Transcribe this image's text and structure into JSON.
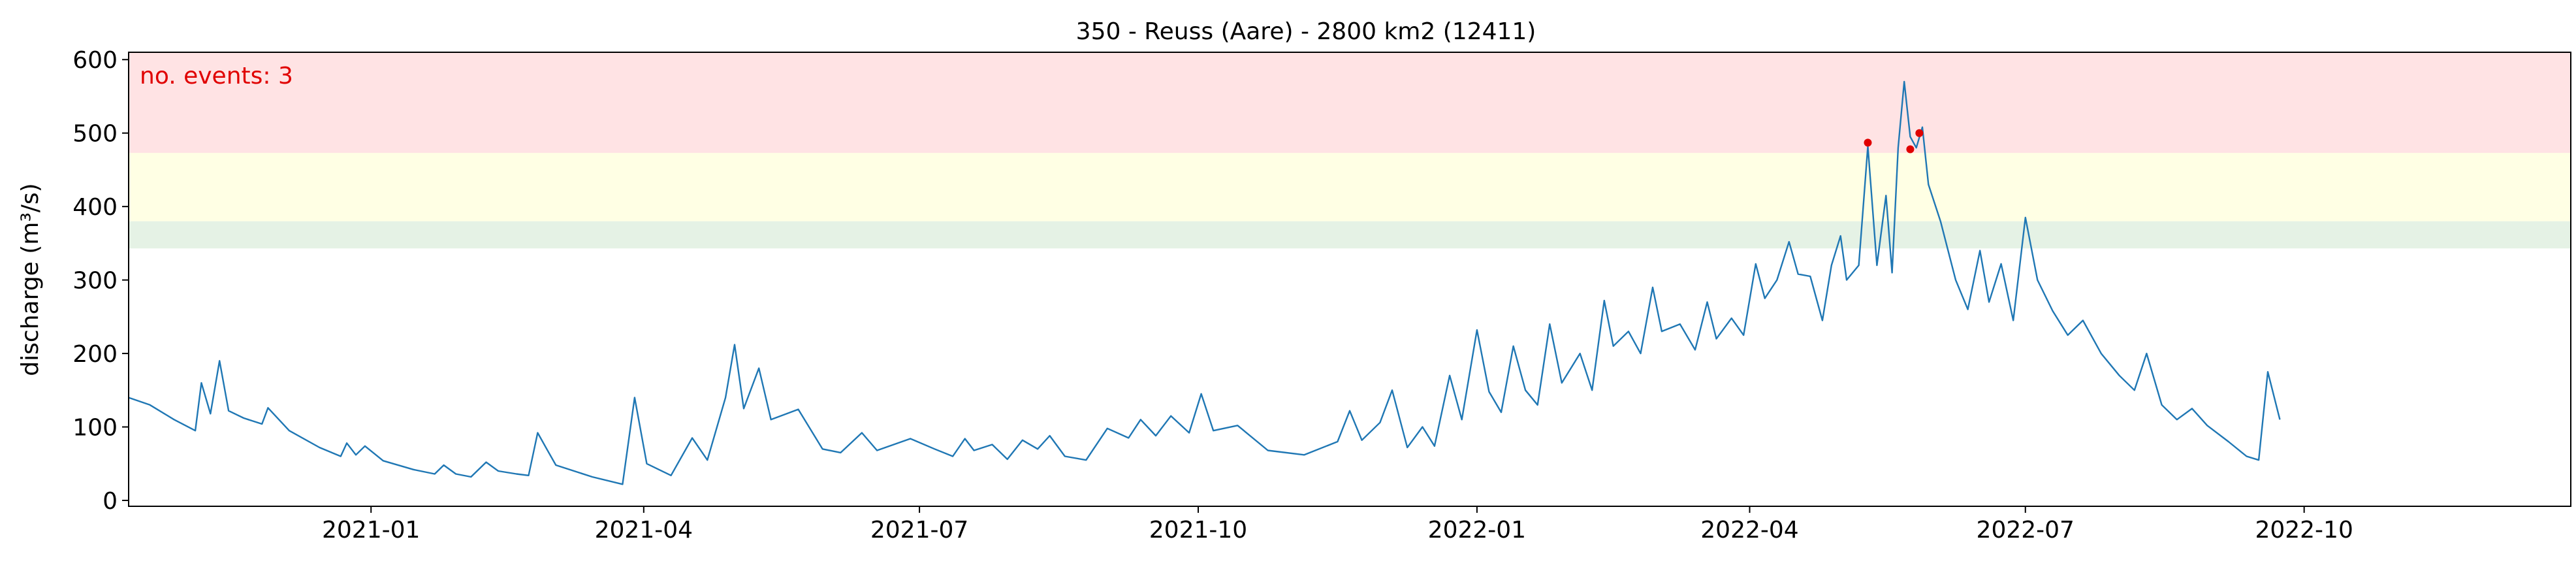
{
  "chart_data": {
    "type": "line",
    "title": "350 - Reuss (Aare) - 2800 km2 (12411)",
    "xlabel": "",
    "ylabel": "discharge (m³/s)",
    "ylim": [
      -8,
      610
    ],
    "xlim": [
      "2020-10-13",
      "2022-12-28"
    ],
    "grid": false,
    "legend": "none",
    "annotation": {
      "text": "no. events: 3",
      "color": "#e00000",
      "position": "top-left"
    },
    "x_ticks": [
      "2021-01",
      "2021-04",
      "2021-07",
      "2021-10",
      "2022-01",
      "2022-04",
      "2022-07",
      "2022-10"
    ],
    "y_ticks": [
      0,
      100,
      200,
      300,
      400,
      500,
      600
    ],
    "bands": [
      {
        "from": 343,
        "to": 380,
        "color": "#e5f2e5"
      },
      {
        "from": 380,
        "to": 473,
        "color": "#ffffe4"
      },
      {
        "from": 473,
        "to": 610,
        "color": "#ffe3e4"
      }
    ],
    "series": [
      {
        "color": "#1f77b4",
        "points": [
          [
            "2020-10-13",
            140
          ],
          [
            "2020-10-20",
            130
          ],
          [
            "2020-10-28",
            110
          ],
          [
            "2020-11-04",
            95
          ],
          [
            "2020-11-06",
            160
          ],
          [
            "2020-11-09",
            118
          ],
          [
            "2020-11-12",
            190
          ],
          [
            "2020-11-15",
            122
          ],
          [
            "2020-11-20",
            112
          ],
          [
            "2020-11-26",
            104
          ],
          [
            "2020-11-28",
            126
          ],
          [
            "2020-12-05",
            95
          ],
          [
            "2020-12-15",
            72
          ],
          [
            "2020-12-22",
            60
          ],
          [
            "2020-12-24",
            78
          ],
          [
            "2020-12-27",
            62
          ],
          [
            "2020-12-30",
            74
          ],
          [
            "2021-01-05",
            54
          ],
          [
            "2021-01-15",
            42
          ],
          [
            "2021-01-22",
            36
          ],
          [
            "2021-01-25",
            48
          ],
          [
            "2021-01-29",
            36
          ],
          [
            "2021-02-03",
            32
          ],
          [
            "2021-02-08",
            52
          ],
          [
            "2021-02-12",
            40
          ],
          [
            "2021-02-18",
            36
          ],
          [
            "2021-02-22",
            34
          ],
          [
            "2021-02-25",
            92
          ],
          [
            "2021-02-28",
            70
          ],
          [
            "2021-03-03",
            48
          ],
          [
            "2021-03-15",
            32
          ],
          [
            "2021-03-25",
            22
          ],
          [
            "2021-03-29",
            140
          ],
          [
            "2021-04-02",
            50
          ],
          [
            "2021-04-10",
            34
          ],
          [
            "2021-04-17",
            85
          ],
          [
            "2021-04-22",
            55
          ],
          [
            "2021-04-28",
            140
          ],
          [
            "2021-05-01",
            212
          ],
          [
            "2021-05-04",
            125
          ],
          [
            "2021-05-09",
            180
          ],
          [
            "2021-05-13",
            110
          ],
          [
            "2021-05-22",
            124
          ],
          [
            "2021-05-30",
            70
          ],
          [
            "2021-06-05",
            65
          ],
          [
            "2021-06-12",
            92
          ],
          [
            "2021-06-17",
            68
          ],
          [
            "2021-06-28",
            84
          ],
          [
            "2021-07-06",
            70
          ],
          [
            "2021-07-12",
            60
          ],
          [
            "2021-07-16",
            84
          ],
          [
            "2021-07-19",
            68
          ],
          [
            "2021-07-25",
            76
          ],
          [
            "2021-07-30",
            56
          ],
          [
            "2021-08-04",
            82
          ],
          [
            "2021-08-09",
            70
          ],
          [
            "2021-08-13",
            88
          ],
          [
            "2021-08-18",
            60
          ],
          [
            "2021-08-25",
            55
          ],
          [
            "2021-09-01",
            98
          ],
          [
            "2021-09-08",
            85
          ],
          [
            "2021-09-12",
            110
          ],
          [
            "2021-09-17",
            88
          ],
          [
            "2021-09-22",
            115
          ],
          [
            "2021-09-28",
            92
          ],
          [
            "2021-10-02",
            145
          ],
          [
            "2021-10-06",
            95
          ],
          [
            "2021-10-14",
            102
          ],
          [
            "2021-10-24",
            68
          ],
          [
            "2021-11-05",
            62
          ],
          [
            "2021-11-16",
            80
          ],
          [
            "2021-11-20",
            122
          ],
          [
            "2021-11-24",
            82
          ],
          [
            "2021-11-30",
            106
          ],
          [
            "2021-12-04",
            150
          ],
          [
            "2021-12-09",
            72
          ],
          [
            "2021-12-14",
            100
          ],
          [
            "2021-12-18",
            74
          ],
          [
            "2021-12-23",
            170
          ],
          [
            "2021-12-27",
            110
          ],
          [
            "2022-01-01",
            232
          ],
          [
            "2022-01-05",
            148
          ],
          [
            "2022-01-09",
            120
          ],
          [
            "2022-01-13",
            210
          ],
          [
            "2022-01-17",
            150
          ],
          [
            "2022-01-21",
            130
          ],
          [
            "2022-01-25",
            240
          ],
          [
            "2022-01-29",
            160
          ],
          [
            "2022-02-04",
            200
          ],
          [
            "2022-02-08",
            150
          ],
          [
            "2022-02-12",
            272
          ],
          [
            "2022-02-15",
            210
          ],
          [
            "2022-02-20",
            230
          ],
          [
            "2022-02-24",
            200
          ],
          [
            "2022-02-28",
            290
          ],
          [
            "2022-03-03",
            230
          ],
          [
            "2022-03-09",
            240
          ],
          [
            "2022-03-14",
            205
          ],
          [
            "2022-03-18",
            270
          ],
          [
            "2022-03-21",
            220
          ],
          [
            "2022-03-26",
            248
          ],
          [
            "2022-03-30",
            225
          ],
          [
            "2022-04-03",
            322
          ],
          [
            "2022-04-06",
            275
          ],
          [
            "2022-04-10",
            300
          ],
          [
            "2022-04-14",
            352
          ],
          [
            "2022-04-17",
            308
          ],
          [
            "2022-04-21",
            305
          ],
          [
            "2022-04-25",
            245
          ],
          [
            "2022-04-28",
            320
          ],
          [
            "2022-05-01",
            360
          ],
          [
            "2022-05-03",
            300
          ],
          [
            "2022-05-07",
            320
          ],
          [
            "2022-05-10",
            482
          ],
          [
            "2022-05-13",
            320
          ],
          [
            "2022-05-16",
            415
          ],
          [
            "2022-05-18",
            310
          ],
          [
            "2022-05-20",
            480
          ],
          [
            "2022-05-22",
            570
          ],
          [
            "2022-05-24",
            495
          ],
          [
            "2022-05-26",
            480
          ],
          [
            "2022-05-28",
            508
          ],
          [
            "2022-05-30",
            430
          ],
          [
            "2022-06-03",
            380
          ],
          [
            "2022-06-08",
            300
          ],
          [
            "2022-06-12",
            260
          ],
          [
            "2022-06-16",
            340
          ],
          [
            "2022-06-19",
            270
          ],
          [
            "2022-06-23",
            322
          ],
          [
            "2022-06-27",
            245
          ],
          [
            "2022-07-01",
            385
          ],
          [
            "2022-07-05",
            300
          ],
          [
            "2022-07-10",
            258
          ],
          [
            "2022-07-15",
            225
          ],
          [
            "2022-07-20",
            245
          ],
          [
            "2022-07-26",
            200
          ],
          [
            "2022-08-01",
            170
          ],
          [
            "2022-08-06",
            150
          ],
          [
            "2022-08-10",
            200
          ],
          [
            "2022-08-15",
            130
          ],
          [
            "2022-08-20",
            110
          ],
          [
            "2022-08-25",
            125
          ],
          [
            "2022-08-30",
            102
          ],
          [
            "2022-09-06",
            80
          ],
          [
            "2022-09-12",
            60
          ],
          [
            "2022-09-16",
            55
          ],
          [
            "2022-09-19",
            175
          ],
          [
            "2022-09-23",
            110
          ]
        ]
      }
    ],
    "events": [
      {
        "x": "2022-05-10",
        "y": 487
      },
      {
        "x": "2022-05-24",
        "y": 478
      },
      {
        "x": "2022-05-27",
        "y": 500
      }
    ]
  }
}
